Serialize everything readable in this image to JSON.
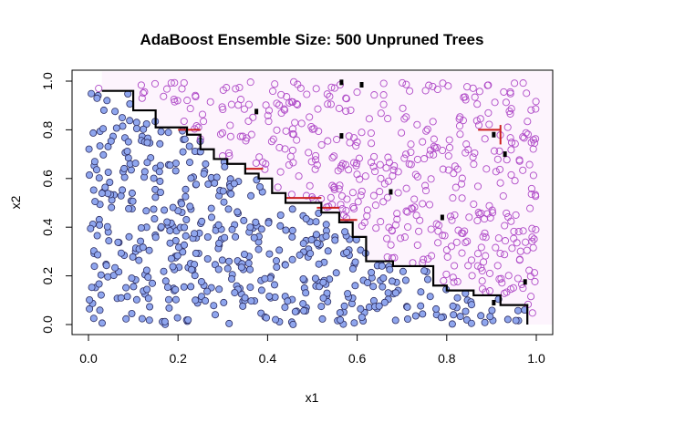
{
  "chart_data": {
    "type": "scatter",
    "title": "AdaBoost Ensemble Size: 500 Unpruned Trees",
    "xlabel": "x1",
    "ylabel": "x2",
    "xlim": [
      0,
      1
    ],
    "ylim": [
      0,
      1
    ],
    "x_ticks": [
      "0.0",
      "0.2",
      "0.4",
      "0.6",
      "0.8",
      "1.0"
    ],
    "y_ticks": [
      "0.0",
      "0.2",
      "0.4",
      "0.6",
      "0.8",
      "1.0"
    ],
    "grid": false,
    "legend": "none",
    "colors": {
      "class_filled_fill": "#8fa6ee",
      "class_filled_edge": "#2c2c60",
      "class_open_edge": "#b04cc8",
      "region_open_tint": "#fbe6fb",
      "boundary_main": "#000000",
      "boundary_alt": "#cc1f1f"
    },
    "series": [
      {
        "marker": "filled-circle",
        "count": 520
      },
      {
        "marker": "open-circle",
        "count": 480
      }
    ],
    "decision_boundary": {
      "x": [
        0.03,
        0.1,
        0.1,
        0.15,
        0.15,
        0.22,
        0.22,
        0.25,
        0.25,
        0.28,
        0.28,
        0.31,
        0.31,
        0.35,
        0.35,
        0.38,
        0.38,
        0.41,
        0.41,
        0.44,
        0.44,
        0.52,
        0.52,
        0.56,
        0.56,
        0.59,
        0.59,
        0.62,
        0.62,
        0.68,
        0.68,
        0.77,
        0.77,
        0.8,
        0.8,
        0.86,
        0.86,
        0.92,
        0.92,
        0.98,
        0.98
      ],
      "y": [
        0.96,
        0.96,
        0.88,
        0.88,
        0.81,
        0.81,
        0.78,
        0.78,
        0.72,
        0.72,
        0.68,
        0.68,
        0.66,
        0.66,
        0.62,
        0.62,
        0.6,
        0.6,
        0.54,
        0.54,
        0.5,
        0.5,
        0.46,
        0.46,
        0.42,
        0.42,
        0.36,
        0.36,
        0.26,
        0.26,
        0.24,
        0.24,
        0.16,
        0.16,
        0.14,
        0.14,
        0.12,
        0.12,
        0.08,
        0.08,
        0.0
      ]
    },
    "boundary_alt_segments": [
      {
        "x": [
          0.2,
          0.25
        ],
        "y": [
          0.8,
          0.8
        ]
      },
      {
        "x": [
          0.35,
          0.39
        ],
        "y": [
          0.64,
          0.64
        ]
      },
      {
        "x": [
          0.44,
          0.52
        ],
        "y": [
          0.52,
          0.52
        ]
      },
      {
        "x": [
          0.51,
          0.56
        ],
        "y": [
          0.48,
          0.48
        ]
      },
      {
        "x": [
          0.56,
          0.6
        ],
        "y": [
          0.43,
          0.43
        ]
      },
      {
        "x": [
          0.87,
          0.92
        ],
        "y": [
          0.8,
          0.8
        ]
      },
      {
        "x": [
          0.92,
          0.92
        ],
        "y": [
          0.74,
          0.82
        ]
      }
    ],
    "islands": [
      {
        "x": 0.375,
        "y": 0.875
      },
      {
        "x": 0.565,
        "y": 0.775
      },
      {
        "x": 0.61,
        "y": 0.985
      },
      {
        "x": 0.675,
        "y": 0.545
      },
      {
        "x": 0.79,
        "y": 0.44
      },
      {
        "x": 0.905,
        "y": 0.78
      },
      {
        "x": 0.93,
        "y": 0.7
      },
      {
        "x": 0.975,
        "y": 0.175
      },
      {
        "x": 0.905,
        "y": 0.09
      },
      {
        "x": 0.565,
        "y": 0.995
      }
    ]
  }
}
